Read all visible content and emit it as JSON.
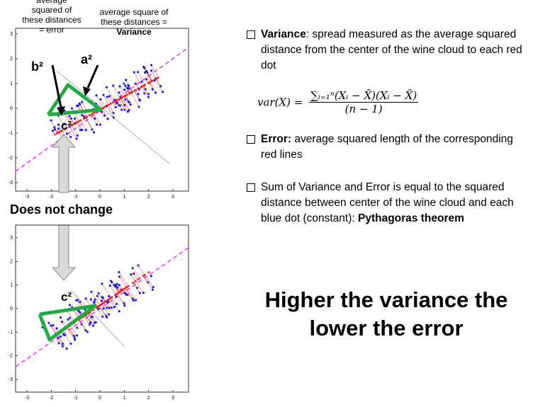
{
  "labels": {
    "error_caption": [
      "average",
      "squared of",
      "these distances",
      "= error"
    ],
    "variance_caption": [
      "average square of",
      "these distances =",
      "Variance"
    ],
    "b2": "b²",
    "a2": "a²",
    "c2_top": "c²",
    "c2_bottom": "c²",
    "does_not_change": "Does not change"
  },
  "bullets": [
    {
      "strong": "Variance",
      "text": ": spread measured as the average squared distance from the center of the wine cloud to each red dot"
    },
    {
      "strong": "Error:",
      "text": " average squared length of the corresponding red lines"
    },
    {
      "strong": "",
      "text": "Sum of Variance and Error is equal to the squared distance between center of the wine cloud and each blue dot (constant): ",
      "tail_strong": "Pythagoras theorem"
    }
  ],
  "formula": {
    "lhs": "var(X) =",
    "numerator": "∑ᵢ₌₁ⁿ(Xᵢ − X̄)(Xᵢ − X̄)",
    "denominator": "(n − 1)"
  },
  "headline": [
    "Higher the variance the",
    "lower the error"
  ],
  "top_plot": {
    "x_ticks": [
      "-3",
      "-2",
      "-1",
      "0",
      "1",
      "2",
      "3"
    ],
    "y_ticks": [
      "3",
      "2",
      "1",
      "0",
      "-1",
      "-2",
      "-3"
    ]
  },
  "bottom_plot": {
    "x_ticks": [
      "-3",
      "-2",
      "-1",
      "0",
      "1",
      "2",
      "3"
    ],
    "y_ticks": [
      "3",
      "2",
      "1",
      "0",
      "-1",
      "-2",
      "-3"
    ]
  },
  "colors": {
    "blue_dot": "#1f1fe0",
    "red": "#e8241c",
    "magenta": "#ff00ff",
    "green": "#22aa44",
    "arrow_gray": "#d9d9d9"
  }
}
